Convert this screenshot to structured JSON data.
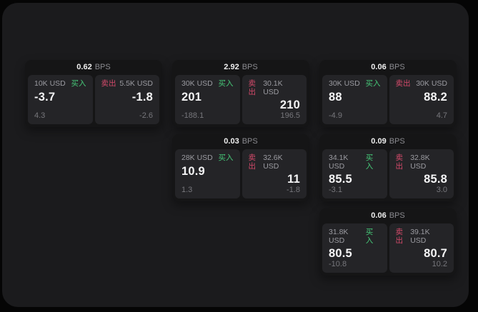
{
  "labels": {
    "buy": "买入",
    "sell": "卖出",
    "bps_suffix": "BPS"
  },
  "colors": {
    "buy_green": "#46c878",
    "sell_red": "#d34a6a",
    "window_bg": "#1b1b1d",
    "card_bg": "#151516",
    "panel_bg": "#242427"
  },
  "cards": [
    {
      "bps": "0.62",
      "buy": {
        "amount": "10K USD",
        "price": "-3.7",
        "delta": "4.3"
      },
      "sell": {
        "amount": "5.5K USD",
        "price": "-1.8",
        "delta": "-2.6"
      }
    },
    {
      "bps": "2.92",
      "buy": {
        "amount": "30K USD",
        "price": "201",
        "delta": "-188.1"
      },
      "sell": {
        "amount": "30.1K USD",
        "price": "210",
        "delta": "196.5"
      }
    },
    {
      "bps": "0.06",
      "buy": {
        "amount": "30K USD",
        "price": "88",
        "delta": "-4.9"
      },
      "sell": {
        "amount": "30K USD",
        "price": "88.2",
        "delta": "4.7"
      }
    },
    {
      "bps": "0.03",
      "buy": {
        "amount": "28K USD",
        "price": "10.9",
        "delta": "1.3"
      },
      "sell": {
        "amount": "32.6K USD",
        "price": "11",
        "delta": "-1.8"
      }
    },
    {
      "bps": "0.09",
      "buy": {
        "amount": "34.1K USD",
        "price": "85.5",
        "delta": "-3.1"
      },
      "sell": {
        "amount": "32.8K USD",
        "price": "85.8",
        "delta": "3.0"
      }
    },
    {
      "bps": "0.06",
      "buy": {
        "amount": "31.8K USD",
        "price": "80.5",
        "delta": "-10.8"
      },
      "sell": {
        "amount": "39.1K USD",
        "price": "80.7",
        "delta": "10.2"
      }
    }
  ]
}
